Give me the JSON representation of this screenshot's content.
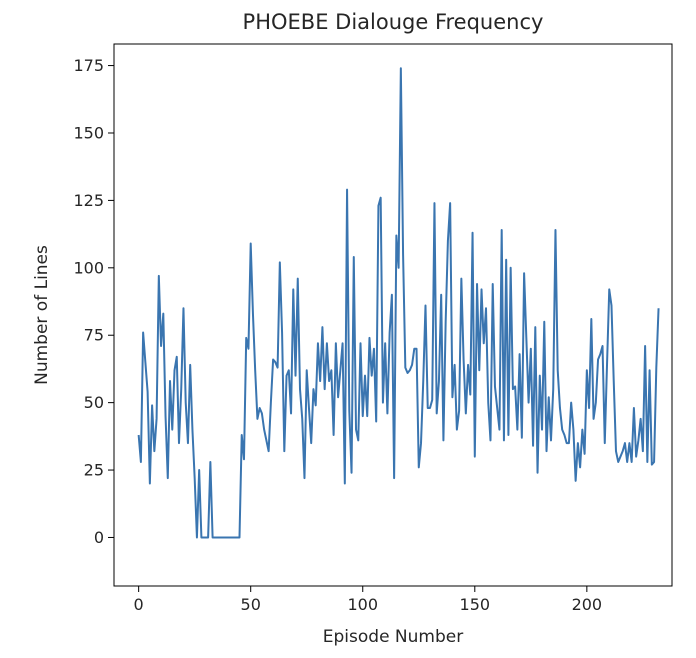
{
  "chart_data": {
    "type": "line",
    "title": "PHOEBE Dialouge Frequency",
    "xlabel": "Episode Number",
    "ylabel": "Number of Lines",
    "xlim": [
      -11,
      238
    ],
    "ylim": [
      -18,
      183
    ],
    "xticks": [
      0,
      50,
      100,
      150,
      200
    ],
    "yticks": [
      0,
      25,
      50,
      75,
      100,
      125,
      150,
      175
    ],
    "grid": false,
    "color": "#3a75b0",
    "series": [
      {
        "values": [
          38,
          28,
          76,
          65,
          54,
          20,
          49,
          32,
          44,
          97,
          71,
          83,
          45,
          22,
          58,
          40,
          62,
          67,
          35,
          55,
          85,
          50,
          35,
          64,
          40,
          22,
          0,
          25,
          0,
          0,
          0,
          0,
          28,
          0,
          0,
          0,
          0,
          0,
          0,
          0,
          0,
          0,
          0,
          0,
          0,
          0,
          38,
          29,
          74,
          70,
          109,
          83,
          62,
          44,
          48,
          46,
          40,
          36,
          32,
          50,
          66,
          65,
          63,
          102,
          76,
          32,
          60,
          62,
          46,
          92,
          60,
          96,
          55,
          44,
          22,
          62,
          48,
          35,
          55,
          49,
          72,
          58,
          78,
          55,
          72,
          58,
          62,
          38,
          72,
          52,
          62,
          72,
          20,
          129,
          47,
          24,
          104,
          40,
          36,
          72,
          45,
          60,
          45,
          74,
          60,
          70,
          43,
          123,
          126,
          50,
          72,
          46,
          76,
          90,
          22,
          112,
          100,
          174,
          105,
          63,
          61,
          62,
          64,
          70,
          70,
          26,
          35,
          58,
          86,
          48,
          48,
          51,
          124,
          46,
          58,
          90,
          36,
          80,
          110,
          124,
          52,
          64,
          40,
          47,
          96,
          66,
          46,
          64,
          53,
          113,
          30,
          94,
          62,
          92,
          72,
          85,
          50,
          36,
          94,
          56,
          48,
          40,
          114,
          36,
          103,
          38,
          100,
          55,
          56,
          40,
          68,
          37,
          98,
          74,
          50,
          70,
          34,
          78,
          24,
          60,
          40,
          80,
          32,
          52,
          36,
          55,
          114,
          62,
          48,
          40,
          38,
          35,
          35,
          50,
          40,
          21,
          35,
          26,
          40,
          31,
          62,
          48,
          81,
          44,
          50,
          66,
          68,
          71,
          35,
          64,
          92,
          86,
          58,
          32,
          28,
          30,
          32,
          35,
          28,
          35,
          28,
          48,
          30,
          36,
          44,
          32,
          71,
          28,
          62,
          27,
          28,
          63,
          85
        ]
      }
    ]
  }
}
